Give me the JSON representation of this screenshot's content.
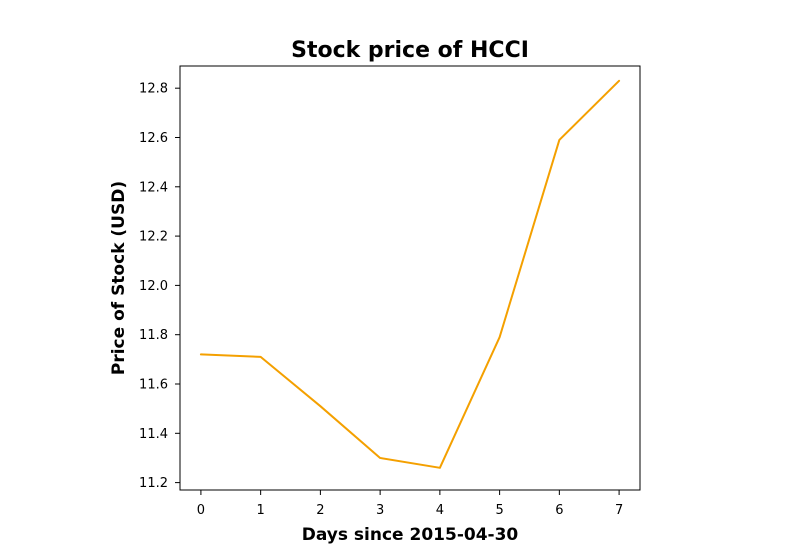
{
  "chart_data": {
    "type": "line",
    "title": "Stock price of HCCI",
    "xlabel": "Days since 2015-04-30",
    "ylabel": "Price of Stock (USD)",
    "x": [
      0,
      1,
      2,
      3,
      4,
      5,
      6,
      7
    ],
    "x_ticks": [
      "0",
      "1",
      "2",
      "3",
      "4",
      "5",
      "6",
      "7"
    ],
    "y_ticks": [
      "11.2",
      "11.4",
      "11.6",
      "11.8",
      "12.0",
      "12.2",
      "12.4",
      "12.6",
      "12.8"
    ],
    "xlim": [
      -0.35,
      7.35
    ],
    "ylim": [
      11.17,
      12.89
    ],
    "grid": false,
    "series": [
      {
        "color": "#f4a000",
        "values": [
          11.72,
          11.71,
          11.51,
          11.3,
          11.26,
          11.79,
          12.59,
          12.83
        ]
      }
    ]
  }
}
